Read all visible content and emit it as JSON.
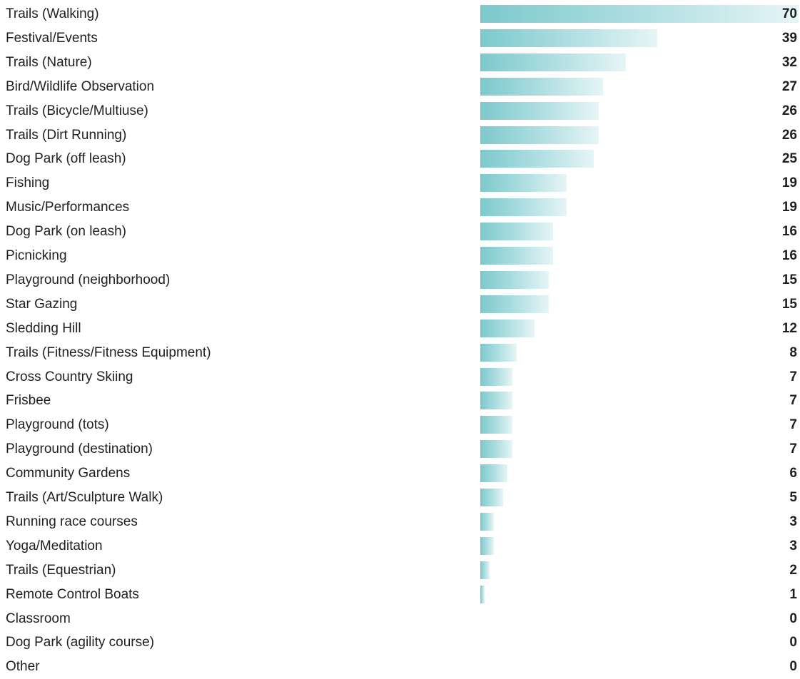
{
  "chart_data": {
    "type": "bar",
    "orientation": "horizontal",
    "bar_color": "#7cc9cc",
    "grid": false,
    "xlim": [
      0,
      70
    ],
    "categories": [
      "Trails (Walking)",
      "Festival/Events",
      "Trails (Nature)",
      "Bird/Wildlife Observation",
      "Trails (Bicycle/Multiuse)",
      "Trails (Dirt Running)",
      "Dog Park (off leash)",
      "Fishing",
      "Music/Performances",
      "Dog Park (on leash)",
      "Picnicking",
      "Playground (neighborhood)",
      "Star Gazing",
      "Sledding Hill",
      "Trails (Fitness/Fitness Equipment)",
      "Cross Country Skiing",
      "Frisbee",
      "Playground (tots)",
      "Playground (destination)",
      "Community Gardens",
      "Trails (Art/Sculpture Walk)",
      "Running race courses",
      "Yoga/Meditation",
      "Trails (Equestrian)",
      "Remote Control Boats",
      "Classroom",
      "Dog Park (agility course)",
      "Other"
    ],
    "values": [
      70,
      39,
      32,
      27,
      26,
      26,
      25,
      19,
      19,
      16,
      16,
      15,
      15,
      12,
      8,
      7,
      7,
      7,
      7,
      6,
      5,
      3,
      3,
      2,
      1,
      0,
      0,
      0
    ],
    "value_labels": [
      "70",
      "39",
      "32",
      "27",
      "26",
      "26",
      "25",
      "19",
      "19",
      "16",
      "16",
      "15",
      "15",
      "12",
      "8",
      "7",
      "7",
      "7",
      "7",
      "6",
      "5",
      "3",
      "3",
      "2",
      "1",
      "0",
      "0",
      "0"
    ]
  }
}
